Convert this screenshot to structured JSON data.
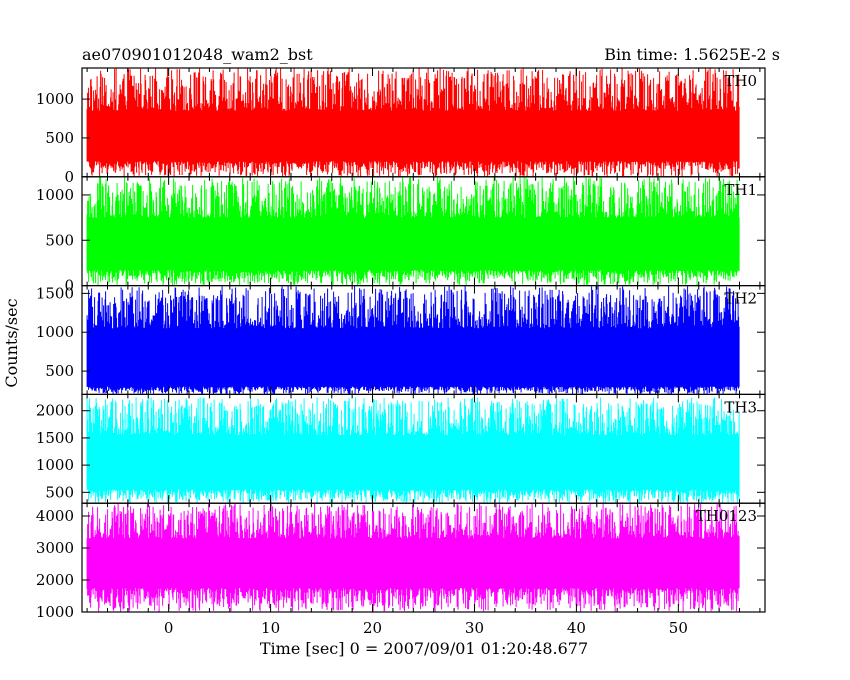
{
  "header": {
    "title": "ae070901012048_wam2_bst",
    "bin_time": "Bin time: 1.5625E-2 s"
  },
  "chart_data": {
    "type": "line",
    "title": "ae070901012048_wam2_bst",
    "subtitle": "Bin time: 1.5625E-2 s",
    "xlabel": "Time [sec] 0 = 2007/09/01 01:20:48.677",
    "ylabel": "Counts/sec",
    "xlim": [
      -8.5,
      58.5
    ],
    "data_x_range": [
      -8,
      56
    ],
    "bin_time": 0.015625,
    "xticks": [
      0,
      10,
      20,
      30,
      40,
      50
    ],
    "grid": false,
    "legend": "none",
    "panels": [
      {
        "name": "TH0",
        "color": "#ff0000",
        "ylim": [
          0,
          1400
        ],
        "yticks": [
          0,
          500,
          1000
        ],
        "typical_low": 200,
        "typical_high": 850,
        "min": 0,
        "max": 1400,
        "seed": 11
      },
      {
        "name": "TH1",
        "color": "#00ff00",
        "ylim": [
          0,
          1200
        ],
        "yticks": [
          0,
          500,
          1000
        ],
        "typical_low": 170,
        "typical_high": 750,
        "min": 0,
        "max": 1200,
        "seed": 23
      },
      {
        "name": "TH2",
        "color": "#0000ff",
        "ylim": [
          200,
          1600
        ],
        "yticks": [
          500,
          1000,
          1500
        ],
        "typical_low": 300,
        "typical_high": 1050,
        "min": 200,
        "max": 1600,
        "seed": 37
      },
      {
        "name": "TH3",
        "color": "#00ffff",
        "ylim": [
          300,
          2300
        ],
        "yticks": [
          500,
          1000,
          1500,
          2000
        ],
        "typical_low": 550,
        "typical_high": 1550,
        "min": 300,
        "max": 2250,
        "seed": 41
      },
      {
        "name": "TH0123",
        "color": "#ff00ff",
        "ylim": [
          1000,
          4400
        ],
        "yticks": [
          1000,
          2000,
          3000,
          4000
        ],
        "typical_low": 1750,
        "typical_high": 3300,
        "min": 1000,
        "max": 4400,
        "seed": 53
      }
    ]
  }
}
